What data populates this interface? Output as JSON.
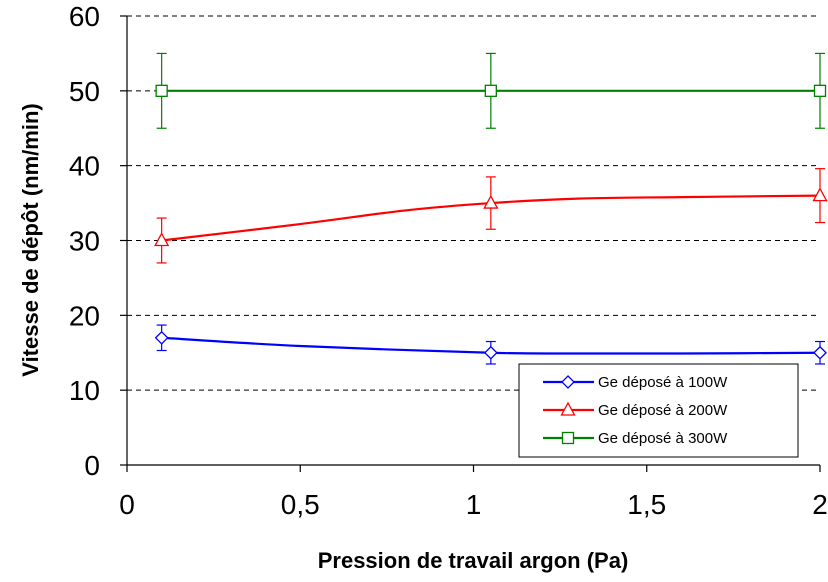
{
  "chart_data": {
    "type": "line",
    "title": "",
    "xlabel": "Pression de travail argon (Pa)",
    "ylabel": "Vitesse de dépôt (nm/min)",
    "xlim": [
      0,
      2
    ],
    "ylim": [
      0,
      60
    ],
    "x_ticks": [
      0,
      0.5,
      1,
      1.5,
      2
    ],
    "x_tick_labels": [
      "0",
      "0,5",
      "1",
      "1,5",
      "2"
    ],
    "y_ticks": [
      0,
      10,
      20,
      30,
      40,
      50,
      60
    ],
    "y_tick_labels": [
      "0",
      "10",
      "20",
      "30",
      "40",
      "50",
      "60"
    ],
    "grid": "horizontal dashed",
    "legend_position": "bottom-right",
    "series": [
      {
        "name": "Ge déposé à 100W",
        "color": "#0000ff",
        "marker": "diamond",
        "x": [
          0.1,
          1.05,
          2
        ],
        "y": [
          17,
          15,
          15
        ],
        "err": [
          1.7,
          1.5,
          1.5
        ],
        "curve_x": [
          0.1,
          0.5,
          1.05,
          1.3,
          1.6,
          2
        ],
        "curve_y": [
          17,
          15.9,
          15,
          14.9,
          14.9,
          15
        ]
      },
      {
        "name": "Ge déposé à 200W",
        "color": "#ff0000",
        "marker": "triangle",
        "x": [
          0.1,
          1.05,
          2
        ],
        "y": [
          30,
          35,
          36
        ],
        "err": [
          3,
          3.5,
          3.6
        ],
        "curve_x": [
          0.1,
          0.5,
          0.8,
          1.05,
          1.3,
          1.6,
          2
        ],
        "curve_y": [
          30,
          32.2,
          34,
          35,
          35.6,
          35.8,
          36
        ]
      },
      {
        "name": "Ge déposé à 300W",
        "color": "#008000",
        "marker": "square",
        "x": [
          0.1,
          1.05,
          2
        ],
        "y": [
          50,
          50,
          50
        ],
        "err": [
          5,
          5,
          5
        ],
        "curve_x": [
          0.1,
          1.05,
          2
        ],
        "curve_y": [
          50,
          50,
          50
        ]
      }
    ]
  }
}
